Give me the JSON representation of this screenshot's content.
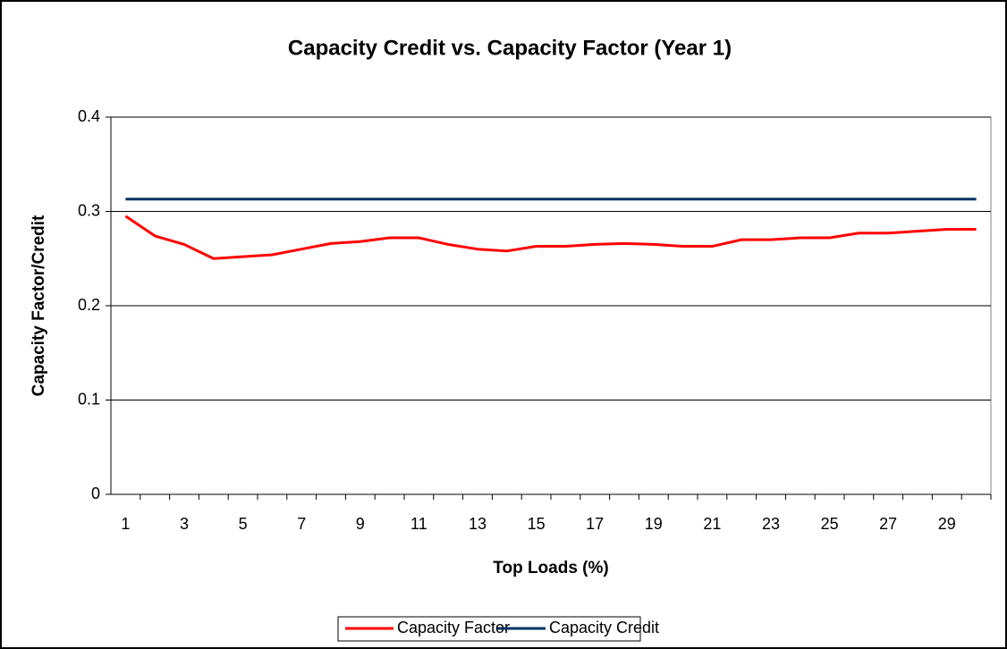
{
  "chart_data": {
    "type": "line",
    "title": "Capacity Credit vs. Capacity Factor (Year 1)",
    "x_label": "Top Loads (%)",
    "y_label": "Capacity Factor/Credit",
    "categories": [
      1,
      null,
      3,
      null,
      5,
      null,
      7,
      null,
      9,
      null,
      11,
      null,
      13,
      null,
      15,
      null,
      17,
      null,
      19,
      null,
      21,
      null,
      23,
      null,
      25,
      null,
      27,
      null,
      29,
      null
    ],
    "series": [
      {
        "name": "Capacity Factor",
        "color": "#ff0000",
        "values": [
          0.295,
          0.274,
          0.265,
          0.25,
          0.252,
          0.254,
          0.26,
          0.266,
          0.268,
          0.272,
          0.272,
          0.265,
          0.26,
          0.258,
          0.263,
          0.263,
          0.265,
          0.266,
          0.265,
          0.263,
          0.263,
          0.27,
          0.27,
          0.272,
          0.272,
          0.277,
          0.277,
          0.279,
          0.281,
          0.281
        ]
      },
      {
        "name": "Capacity Credit",
        "color": "#003366",
        "values": [
          0.313,
          0.313,
          0.313,
          0.313,
          0.313,
          0.313,
          0.313,
          0.313,
          0.313,
          0.313,
          0.313,
          0.313,
          0.313,
          0.313,
          0.313,
          0.313,
          0.313,
          0.313,
          0.313,
          0.313,
          0.313,
          0.313,
          0.313,
          0.313,
          0.313,
          0.313,
          0.313,
          0.313,
          0.313,
          0.313
        ]
      }
    ],
    "ylim": [
      0,
      0.4
    ],
    "yticks": [
      0,
      0.1,
      0.2,
      0.3,
      0.4
    ],
    "grid": true,
    "legend": "bottom"
  }
}
